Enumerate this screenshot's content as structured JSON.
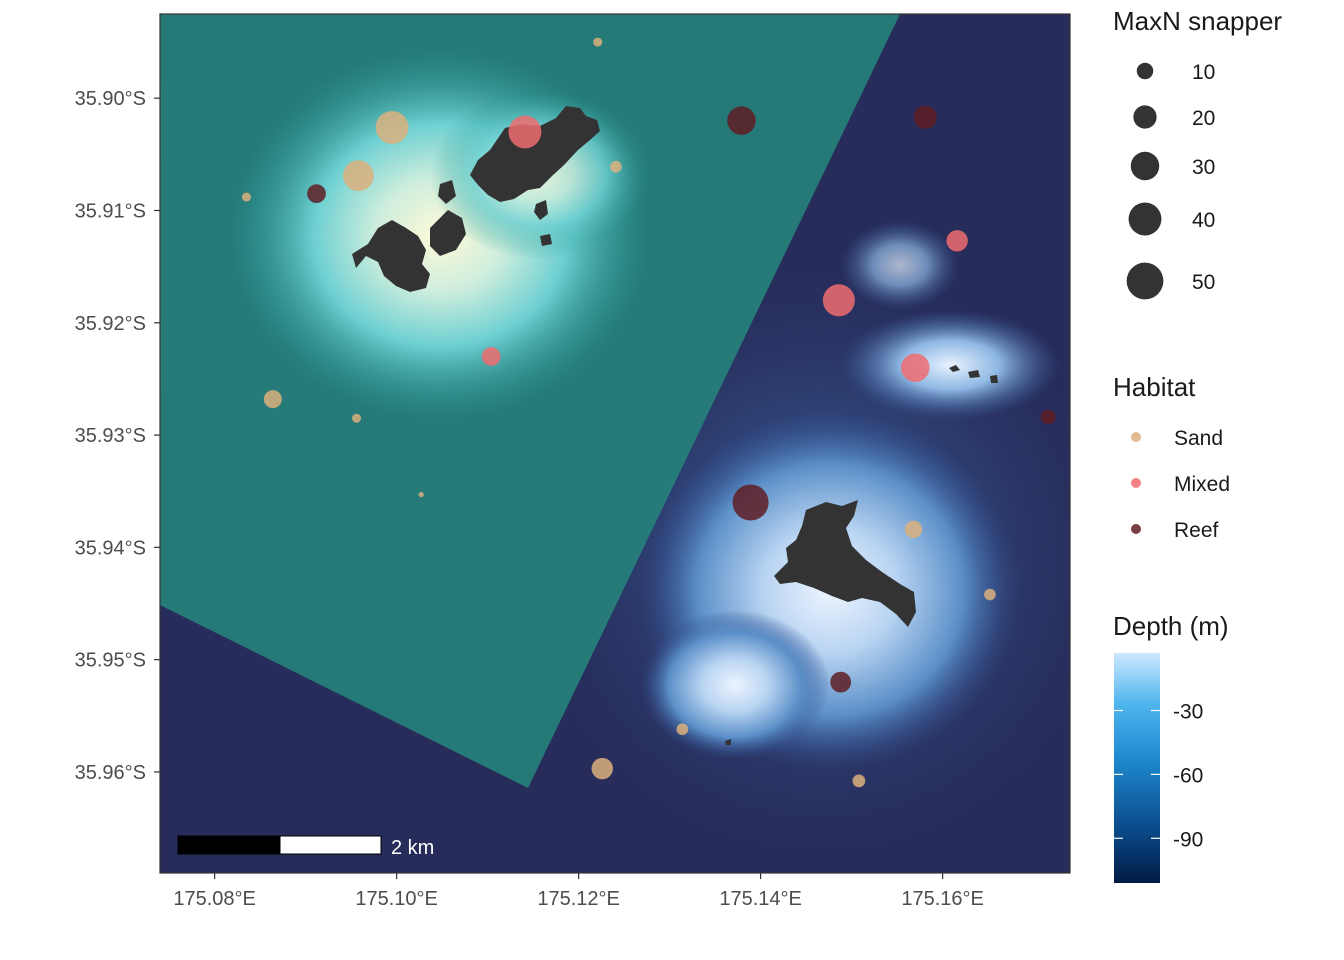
{
  "map": {
    "x_axis": {
      "tick_labels": [
        "175.08°E",
        "175.10°E",
        "175.12°E",
        "175.14°E",
        "175.16°E"
      ],
      "tick_values": [
        175.08,
        175.1,
        175.12,
        175.14,
        175.16
      ],
      "range": [
        175.074,
        175.174
      ]
    },
    "y_axis": {
      "tick_labels": [
        "35.90°S",
        "35.91°S",
        "35.92°S",
        "35.93°S",
        "35.94°S",
        "35.95°S",
        "35.96°S"
      ],
      "tick_values": [
        35.9,
        35.91,
        35.92,
        35.93,
        35.94,
        35.95,
        35.96
      ],
      "range": [
        35.8925,
        35.969
      ]
    },
    "scale_bar": {
      "label": "2 km"
    },
    "colors": {
      "marine_reserve": "#2a9d94",
      "deep_water": "#272c5a",
      "land": "#333333",
      "panel_border": "#333333"
    }
  },
  "legend": {
    "size": {
      "title": "MaxN snapper",
      "labels": [
        "10",
        "20",
        "30",
        "40",
        "50"
      ],
      "values": [
        10,
        20,
        30,
        40,
        50
      ]
    },
    "habitat": {
      "title": "Habitat",
      "labels": [
        "Sand",
        "Mixed",
        "Reef"
      ],
      "colors": [
        "#dcb07e",
        "#ee6c70",
        "#5e1d24"
      ]
    },
    "depth": {
      "title": "Depth (m)",
      "labels": [
        "-30",
        "-60",
        "-90"
      ],
      "values": [
        -30,
        -60,
        -90
      ],
      "range": [
        -111,
        -3
      ],
      "colors": [
        "#001a44",
        "#0b4e8e",
        "#1f8bd0",
        "#4fb5ee",
        "#cde9ff"
      ]
    }
  },
  "chart_data": {
    "type": "scatter",
    "title": "",
    "xlabel": "",
    "ylabel": "",
    "size_legend": "MaxN snapper",
    "color_legend": "Habitat",
    "points": [
      {
        "lon": 175.1221,
        "lat": 35.895,
        "habitat": "Sand",
        "maxn": 3
      },
      {
        "lon": 175.0995,
        "lat": 35.9026,
        "habitat": "Sand",
        "maxn": 40
      },
      {
        "lon": 175.1141,
        "lat": 35.903,
        "habitat": "Mixed",
        "maxn": 40
      },
      {
        "lon": 175.1379,
        "lat": 35.902,
        "habitat": "Reef",
        "maxn": 30
      },
      {
        "lon": 175.1581,
        "lat": 35.9017,
        "habitat": "Reef",
        "maxn": 20
      },
      {
        "lon": 175.1241,
        "lat": 35.9061,
        "habitat": "Sand",
        "maxn": 5
      },
      {
        "lon": 175.0958,
        "lat": 35.9069,
        "habitat": "Sand",
        "maxn": 35
      },
      {
        "lon": 175.0912,
        "lat": 35.9085,
        "habitat": "Reef",
        "maxn": 13
      },
      {
        "lon": 175.0835,
        "lat": 35.9088,
        "habitat": "Sand",
        "maxn": 3
      },
      {
        "lon": 175.1616,
        "lat": 35.9127,
        "habitat": "Mixed",
        "maxn": 17
      },
      {
        "lon": 175.1486,
        "lat": 35.918,
        "habitat": "Mixed",
        "maxn": 38
      },
      {
        "lon": 175.1104,
        "lat": 35.923,
        "habitat": "Mixed",
        "maxn": 13
      },
      {
        "lon": 175.157,
        "lat": 35.924,
        "habitat": "Mixed",
        "maxn": 30
      },
      {
        "lon": 175.0864,
        "lat": 35.9268,
        "habitat": "Sand",
        "maxn": 12
      },
      {
        "lon": 175.0956,
        "lat": 35.9285,
        "habitat": "Sand",
        "maxn": 3
      },
      {
        "lon": 175.1716,
        "lat": 35.9284,
        "habitat": "Reef",
        "maxn": 8
      },
      {
        "lon": 175.1027,
        "lat": 35.9353,
        "habitat": "Sand",
        "maxn": 1
      },
      {
        "lon": 175.1389,
        "lat": 35.936,
        "habitat": "Reef",
        "maxn": 48
      },
      {
        "lon": 175.1568,
        "lat": 35.9384,
        "habitat": "Sand",
        "maxn": 11
      },
      {
        "lon": 175.1652,
        "lat": 35.9442,
        "habitat": "Sand",
        "maxn": 5
      },
      {
        "lon": 175.1488,
        "lat": 35.952,
        "habitat": "Reef",
        "maxn": 16
      },
      {
        "lon": 175.1314,
        "lat": 35.9562,
        "habitat": "Sand",
        "maxn": 5
      },
      {
        "lon": 175.1226,
        "lat": 35.9597,
        "habitat": "Sand",
        "maxn": 17
      },
      {
        "lon": 175.1508,
        "lat": 35.9608,
        "habitat": "Sand",
        "maxn": 6
      }
    ]
  }
}
